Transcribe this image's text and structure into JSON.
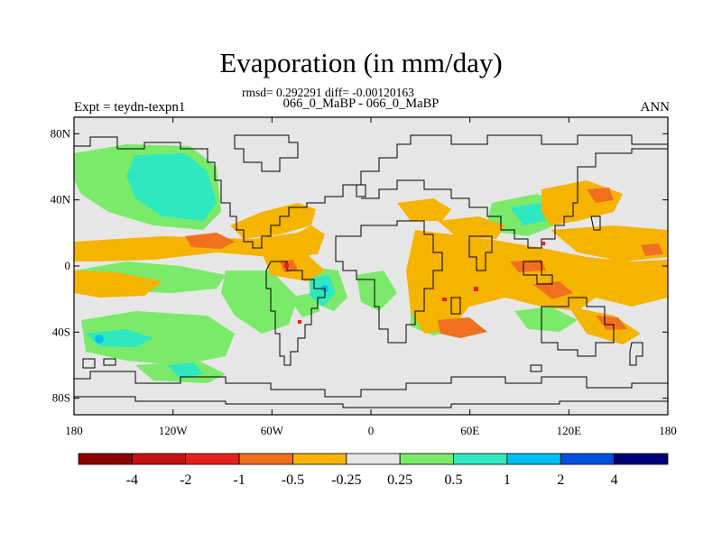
{
  "title": "Evaporation (in mm/day)",
  "subtitle_stats": "rmsd= 0.292291 diff= -0.00120163",
  "subtitle_cases": "066_0_MaBP - 066_0_MaBP",
  "expt_label": "Expt = teydn-texpn1",
  "season": "ANN",
  "lat_ticks": [
    {
      "label": "80N",
      "value": 80
    },
    {
      "label": "40N",
      "value": 40
    },
    {
      "label": "0",
      "value": 0
    },
    {
      "label": "40S",
      "value": -40
    },
    {
      "label": "80S",
      "value": -80
    }
  ],
  "lon_ticks": [
    {
      "label": "180",
      "value": -180
    },
    {
      "label": "120W",
      "value": -120
    },
    {
      "label": "60W",
      "value": -60
    },
    {
      "label": "0",
      "value": 0
    },
    {
      "label": "60E",
      "value": 60
    },
    {
      "label": "120E",
      "value": 120
    },
    {
      "label": "180",
      "value": 180
    }
  ],
  "colorbar": {
    "colors": [
      "#8b0000",
      "#c81010",
      "#e8221a",
      "#f07020",
      "#f5b400",
      "#e6e6e6",
      "#7bea6a",
      "#30e8c0",
      "#00c0f0",
      "#0050e0",
      "#00007a"
    ],
    "labels": [
      "-4",
      "-2",
      "-1",
      "-0.5",
      "-0.25",
      "0.25",
      "0.5",
      "1",
      "2",
      "4"
    ]
  },
  "colors": {
    "background": "#e6e6e6",
    "orange": "#f5b400",
    "dark_orange": "#f07020",
    "green": "#7bea6a",
    "cyan": "#30e8c0",
    "blue": "#00c0f0",
    "coast": "#000000"
  }
}
